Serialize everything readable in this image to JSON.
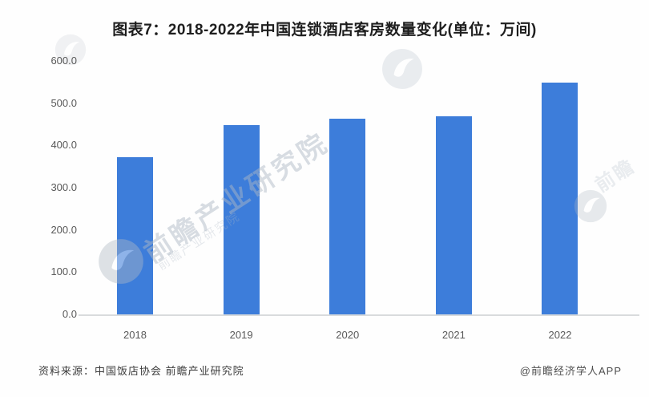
{
  "title": "图表7：2018-2022年中国连锁酒店客房数量变化(单位：万间)",
  "source_note": "资料来源：中国饭店协会 前瞻产业研究院",
  "credit": "@前瞻经济学人APP",
  "watermark": {
    "text": "前瞻产业研究院",
    "fragment": "前瞻"
  },
  "colors": {
    "bar": "#3d7dda",
    "axis_line": "#d9dbdd",
    "tick_label": "#595959",
    "title": "#1e1e1e"
  },
  "chart_data": {
    "type": "bar",
    "title": "图表7：2018-2022年中国连锁酒店客房数量变化(单位：万间)",
    "categories": [
      "2018",
      "2019",
      "2020",
      "2021",
      "2022"
    ],
    "values": [
      375,
      450,
      465,
      470,
      550
    ],
    "unit": "万间",
    "xlabel": "",
    "ylabel": "",
    "ylim": [
      0,
      600
    ],
    "ytick_step": 100,
    "ytick_labels": [
      "600.0",
      "500.0",
      "400.0",
      "300.0",
      "200.0",
      "100.0",
      "0.0"
    ],
    "grid": false,
    "legend": false,
    "bar_color": "#3d7dda"
  }
}
